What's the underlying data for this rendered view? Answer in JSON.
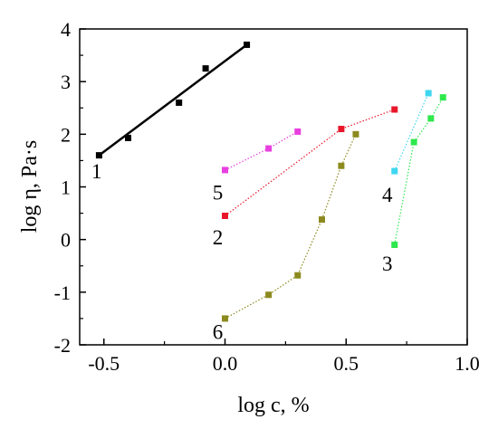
{
  "chart_data": {
    "type": "scatter",
    "title": "",
    "xlabel": "log c, %",
    "ylabel": "log η, Pa·s",
    "xlim": [
      -0.6,
      1.0
    ],
    "ylim": [
      -2,
      4
    ],
    "x_ticks": [
      "-0.5",
      "0.0",
      "0.5",
      "1.0"
    ],
    "y_ticks": [
      "-2",
      "-1",
      "0",
      "1",
      "2",
      "3",
      "4"
    ],
    "grid": false,
    "series": [
      {
        "name": "1",
        "color": "#000000",
        "x": [
          -0.52,
          -0.4,
          -0.19,
          -0.08,
          0.09
        ],
        "y": [
          1.6,
          1.93,
          2.6,
          3.25,
          3.7
        ],
        "line": "fit",
        "fit": {
          "x": [
            -0.52,
            0.09
          ],
          "y": [
            1.6,
            3.7
          ]
        }
      },
      {
        "name": "2",
        "color": "#e8162a",
        "x": [
          0.0,
          0.48,
          0.7
        ],
        "y": [
          0.45,
          2.1,
          2.47
        ],
        "line": "dotted"
      },
      {
        "name": "3",
        "color": "#2ee84e",
        "x": [
          0.7,
          0.78,
          0.85,
          0.9
        ],
        "y": [
          -0.1,
          1.85,
          2.3,
          2.7
        ],
        "line": "dotted"
      },
      {
        "name": "4",
        "color": "#3fd6f0",
        "x": [
          0.7,
          0.84
        ],
        "y": [
          1.3,
          2.78
        ],
        "line": "dotted"
      },
      {
        "name": "5",
        "color": "#e83fe0",
        "x": [
          0.0,
          0.18,
          0.3
        ],
        "y": [
          1.32,
          1.73,
          2.05
        ],
        "line": "dotted"
      },
      {
        "name": "6",
        "color": "#8c8a1e",
        "x": [
          0.0,
          0.18,
          0.3,
          0.4,
          0.48,
          0.54
        ],
        "y": [
          -1.5,
          -1.05,
          -0.68,
          0.38,
          1.4,
          2.0
        ],
        "line": "dotted"
      }
    ],
    "series_labels": [
      {
        "text": "1",
        "x": -0.53,
        "y": 1.3
      },
      {
        "text": "5",
        "x": -0.03,
        "y": 0.9
      },
      {
        "text": "2",
        "x": -0.03,
        "y": 0.05
      },
      {
        "text": "4",
        "x": 0.67,
        "y": 0.85
      },
      {
        "text": "3",
        "x": 0.67,
        "y": -0.45
      },
      {
        "text": "6",
        "x": -0.03,
        "y": -1.75
      }
    ]
  }
}
